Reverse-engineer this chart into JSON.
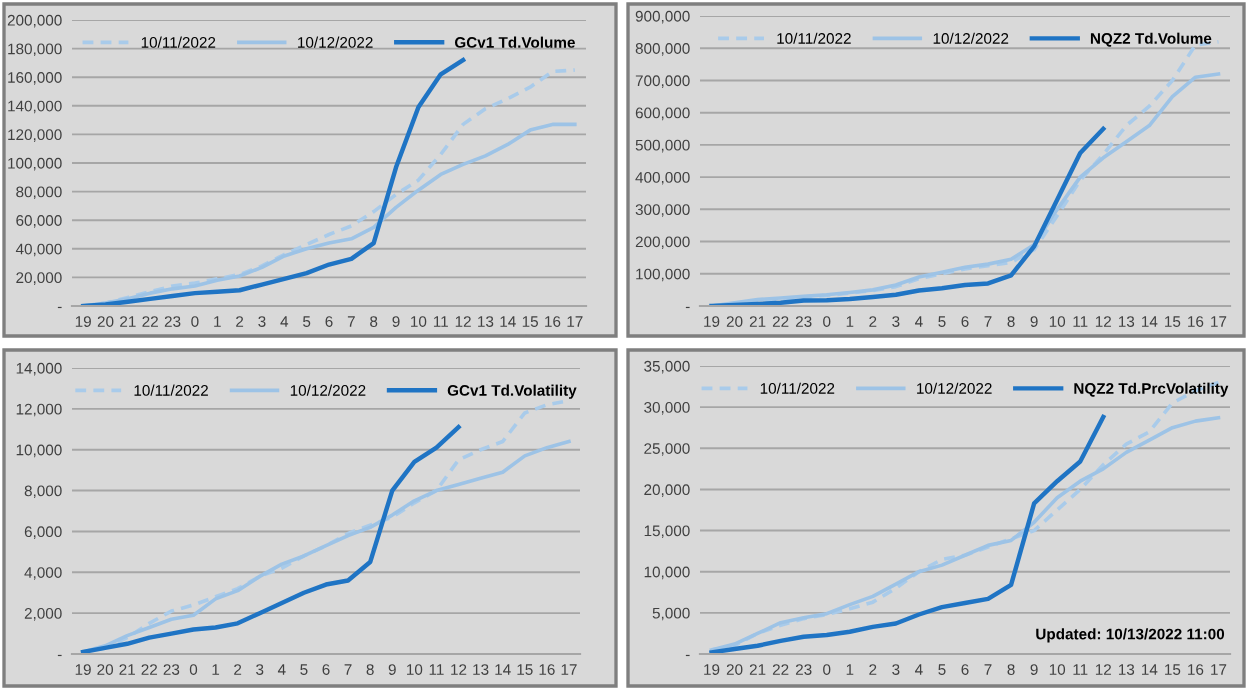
{
  "chart_data": [
    {
      "type": "line",
      "categories": [
        "19",
        "20",
        "21",
        "22",
        "23",
        "0",
        "1",
        "2",
        "3",
        "4",
        "5",
        "6",
        "7",
        "8",
        "9",
        "10",
        "11",
        "12",
        "13",
        "14",
        "15",
        "16",
        "17"
      ],
      "ylim": [
        0,
        200000
      ],
      "yticks": [
        {
          "value": 0,
          "label": "-"
        },
        {
          "value": 20000,
          "label": "20,000"
        },
        {
          "value": 40000,
          "label": "40,000"
        },
        {
          "value": 60000,
          "label": "60,000"
        },
        {
          "value": 80000,
          "label": "80,000"
        },
        {
          "value": 100000,
          "label": "100,000"
        },
        {
          "value": 120000,
          "label": "120,000"
        },
        {
          "value": 140000,
          "label": "140,000"
        },
        {
          "value": 160000,
          "label": "160,000"
        },
        {
          "value": 180000,
          "label": "180,000"
        },
        {
          "value": 200000,
          "label": "200,000"
        }
      ],
      "grid": "y",
      "legend": "top",
      "series": [
        {
          "name": "10/11/2022",
          "color": "#a9cbea",
          "line_style": "dashed",
          "values": [
            0,
            2000,
            6000,
            10000,
            14000,
            16000,
            19000,
            22000,
            28000,
            36000,
            43000,
            50000,
            56000,
            66000,
            78000,
            88000,
            106000,
            127000,
            138000,
            145000,
            153000,
            164000,
            165000
          ]
        },
        {
          "name": "10/12/2022",
          "color": "#9dc3e6",
          "line_style": "solid",
          "values": [
            0,
            2000,
            5000,
            9000,
            12000,
            14000,
            18000,
            21000,
            27000,
            35000,
            40000,
            44000,
            47000,
            55000,
            69000,
            81000,
            92000,
            99000,
            105000,
            113000,
            123000,
            127000,
            127000
          ]
        },
        {
          "name": "GCv1 Td.Volume",
          "color": "#1f74c4",
          "line_style": "solid",
          "values": [
            0,
            1000,
            3000,
            5000,
            7000,
            9000,
            10000,
            11000,
            15000,
            19000,
            23000,
            29000,
            33000,
            44000,
            97000,
            139000,
            162000,
            172000,
            null,
            null,
            null,
            null,
            null
          ]
        }
      ]
    },
    {
      "type": "line",
      "categories": [
        "19",
        "20",
        "21",
        "22",
        "23",
        "0",
        "1",
        "2",
        "3",
        "4",
        "5",
        "6",
        "7",
        "8",
        "9",
        "10",
        "11",
        "12",
        "13",
        "14",
        "15",
        "16",
        "17"
      ],
      "ylim": [
        0,
        900000
      ],
      "yticks": [
        {
          "value": 0,
          "label": "-"
        },
        {
          "value": 100000,
          "label": "100,000"
        },
        {
          "value": 200000,
          "label": "200,000"
        },
        {
          "value": 300000,
          "label": "300,000"
        },
        {
          "value": 400000,
          "label": "400,000"
        },
        {
          "value": 500000,
          "label": "500,000"
        },
        {
          "value": 600000,
          "label": "600,000"
        },
        {
          "value": 700000,
          "label": "700,000"
        },
        {
          "value": 800000,
          "label": "800,000"
        },
        {
          "value": 900000,
          "label": "900,000"
        }
      ],
      "grid": "y",
      "legend": "top",
      "series": [
        {
          "name": "10/11/2022",
          "color": "#a9cbea",
          "line_style": "dashed",
          "values": [
            0,
            8000,
            15000,
            20000,
            28000,
            33000,
            40000,
            48000,
            60000,
            85000,
            100000,
            115000,
            125000,
            135000,
            175000,
            280000,
            390000,
            470000,
            560000,
            620000,
            700000,
            810000,
            820000
          ]
        },
        {
          "name": "10/12/2022",
          "color": "#9dc3e6",
          "line_style": "solid",
          "values": [
            0,
            10000,
            20000,
            25000,
            30000,
            35000,
            42000,
            50000,
            65000,
            90000,
            105000,
            120000,
            130000,
            145000,
            190000,
            300000,
            400000,
            460000,
            510000,
            560000,
            650000,
            710000,
            720000
          ]
        },
        {
          "name": "NQZ2 Td.Volume",
          "color": "#1f74c4",
          "line_style": "solid",
          "values": [
            0,
            3000,
            6000,
            10000,
            17000,
            18000,
            22000,
            28000,
            35000,
            48000,
            55000,
            65000,
            70000,
            95000,
            185000,
            330000,
            475000,
            550000,
            null,
            null,
            null,
            null,
            null
          ]
        }
      ]
    },
    {
      "type": "line",
      "categories": [
        "19",
        "20",
        "21",
        "22",
        "23",
        "0",
        "1",
        "2",
        "3",
        "4",
        "5",
        "6",
        "7",
        "8",
        "9",
        "10",
        "11",
        "12",
        "13",
        "14",
        "15",
        "16",
        "17"
      ],
      "ylim": [
        0,
        14000
      ],
      "yticks": [
        {
          "value": 0,
          "label": "-"
        },
        {
          "value": 2000,
          "label": "2,000"
        },
        {
          "value": 4000,
          "label": "4,000"
        },
        {
          "value": 6000,
          "label": "6,000"
        },
        {
          "value": 8000,
          "label": "8,000"
        },
        {
          "value": 10000,
          "label": "10,000"
        },
        {
          "value": 12000,
          "label": "12,000"
        },
        {
          "value": 14000,
          "label": "14,000"
        }
      ],
      "grid": "y",
      "legend": "top",
      "series": [
        {
          "name": "10/11/2022",
          "color": "#a9cbea",
          "line_style": "dashed",
          "values": [
            100,
            300,
            800,
            1500,
            2100,
            2400,
            2800,
            3200,
            3800,
            4200,
            4800,
            5300,
            5900,
            6300,
            6700,
            7400,
            8000,
            9500,
            10000,
            10400,
            11800,
            12200,
            12400
          ]
        },
        {
          "name": "10/12/2022",
          "color": "#9dc3e6",
          "line_style": "solid",
          "values": [
            100,
            400,
            900,
            1300,
            1700,
            1900,
            2700,
            3100,
            3800,
            4400,
            4800,
            5300,
            5800,
            6200,
            6800,
            7500,
            8000,
            8300,
            8600,
            8900,
            9700,
            10100,
            10400
          ]
        },
        {
          "name": "GCv1 Td.Volatility",
          "color": "#1f74c4",
          "line_style": "solid",
          "values": [
            100,
            300,
            500,
            800,
            1000,
            1200,
            1300,
            1500,
            2000,
            2500,
            3000,
            3400,
            3600,
            4500,
            8000,
            9400,
            10100,
            11100,
            null,
            null,
            null,
            null,
            null
          ]
        }
      ]
    },
    {
      "type": "line",
      "categories": [
        "19",
        "20",
        "21",
        "22",
        "23",
        "0",
        "1",
        "2",
        "3",
        "4",
        "5",
        "6",
        "7",
        "8",
        "9",
        "10",
        "11",
        "12",
        "13",
        "14",
        "15",
        "16",
        "17"
      ],
      "ylim": [
        0,
        35000
      ],
      "yticks": [
        {
          "value": 0,
          "label": "-"
        },
        {
          "value": 5000,
          "label": "5,000"
        },
        {
          "value": 10000,
          "label": "10,000"
        },
        {
          "value": 15000,
          "label": "15,000"
        },
        {
          "value": 20000,
          "label": "20,000"
        },
        {
          "value": 25000,
          "label": "25,000"
        },
        {
          "value": 30000,
          "label": "30,000"
        },
        {
          "value": 35000,
          "label": "35,000"
        }
      ],
      "grid": "y",
      "legend": "top",
      "annotations": [
        "Updated: 10/13/2022 11:00"
      ],
      "series": [
        {
          "name": "10/11/2022",
          "color": "#a9cbea",
          "line_style": "dashed",
          "values": [
            500,
            1000,
            2500,
            3500,
            4300,
            4800,
            5500,
            6300,
            8000,
            10000,
            11500,
            12000,
            13000,
            14000,
            15000,
            17500,
            20000,
            23000,
            25500,
            27000,
            30500,
            32000,
            33000
          ]
        },
        {
          "name": "10/12/2022",
          "color": "#9dc3e6",
          "line_style": "solid",
          "values": [
            500,
            1200,
            2500,
            3800,
            4400,
            4900,
            6000,
            7000,
            8500,
            10000,
            10800,
            12000,
            13200,
            13800,
            16000,
            19000,
            21000,
            22500,
            24500,
            26000,
            27500,
            28300,
            28700
          ]
        },
        {
          "name": "NQZ2 Td.PrcVolatility",
          "color": "#1f74c4",
          "line_style": "solid",
          "values": [
            200,
            600,
            1000,
            1600,
            2100,
            2300,
            2700,
            3300,
            3700,
            4800,
            5700,
            6200,
            6700,
            8400,
            18300,
            21000,
            23400,
            28800,
            null,
            null,
            null,
            null,
            null
          ]
        }
      ]
    }
  ]
}
